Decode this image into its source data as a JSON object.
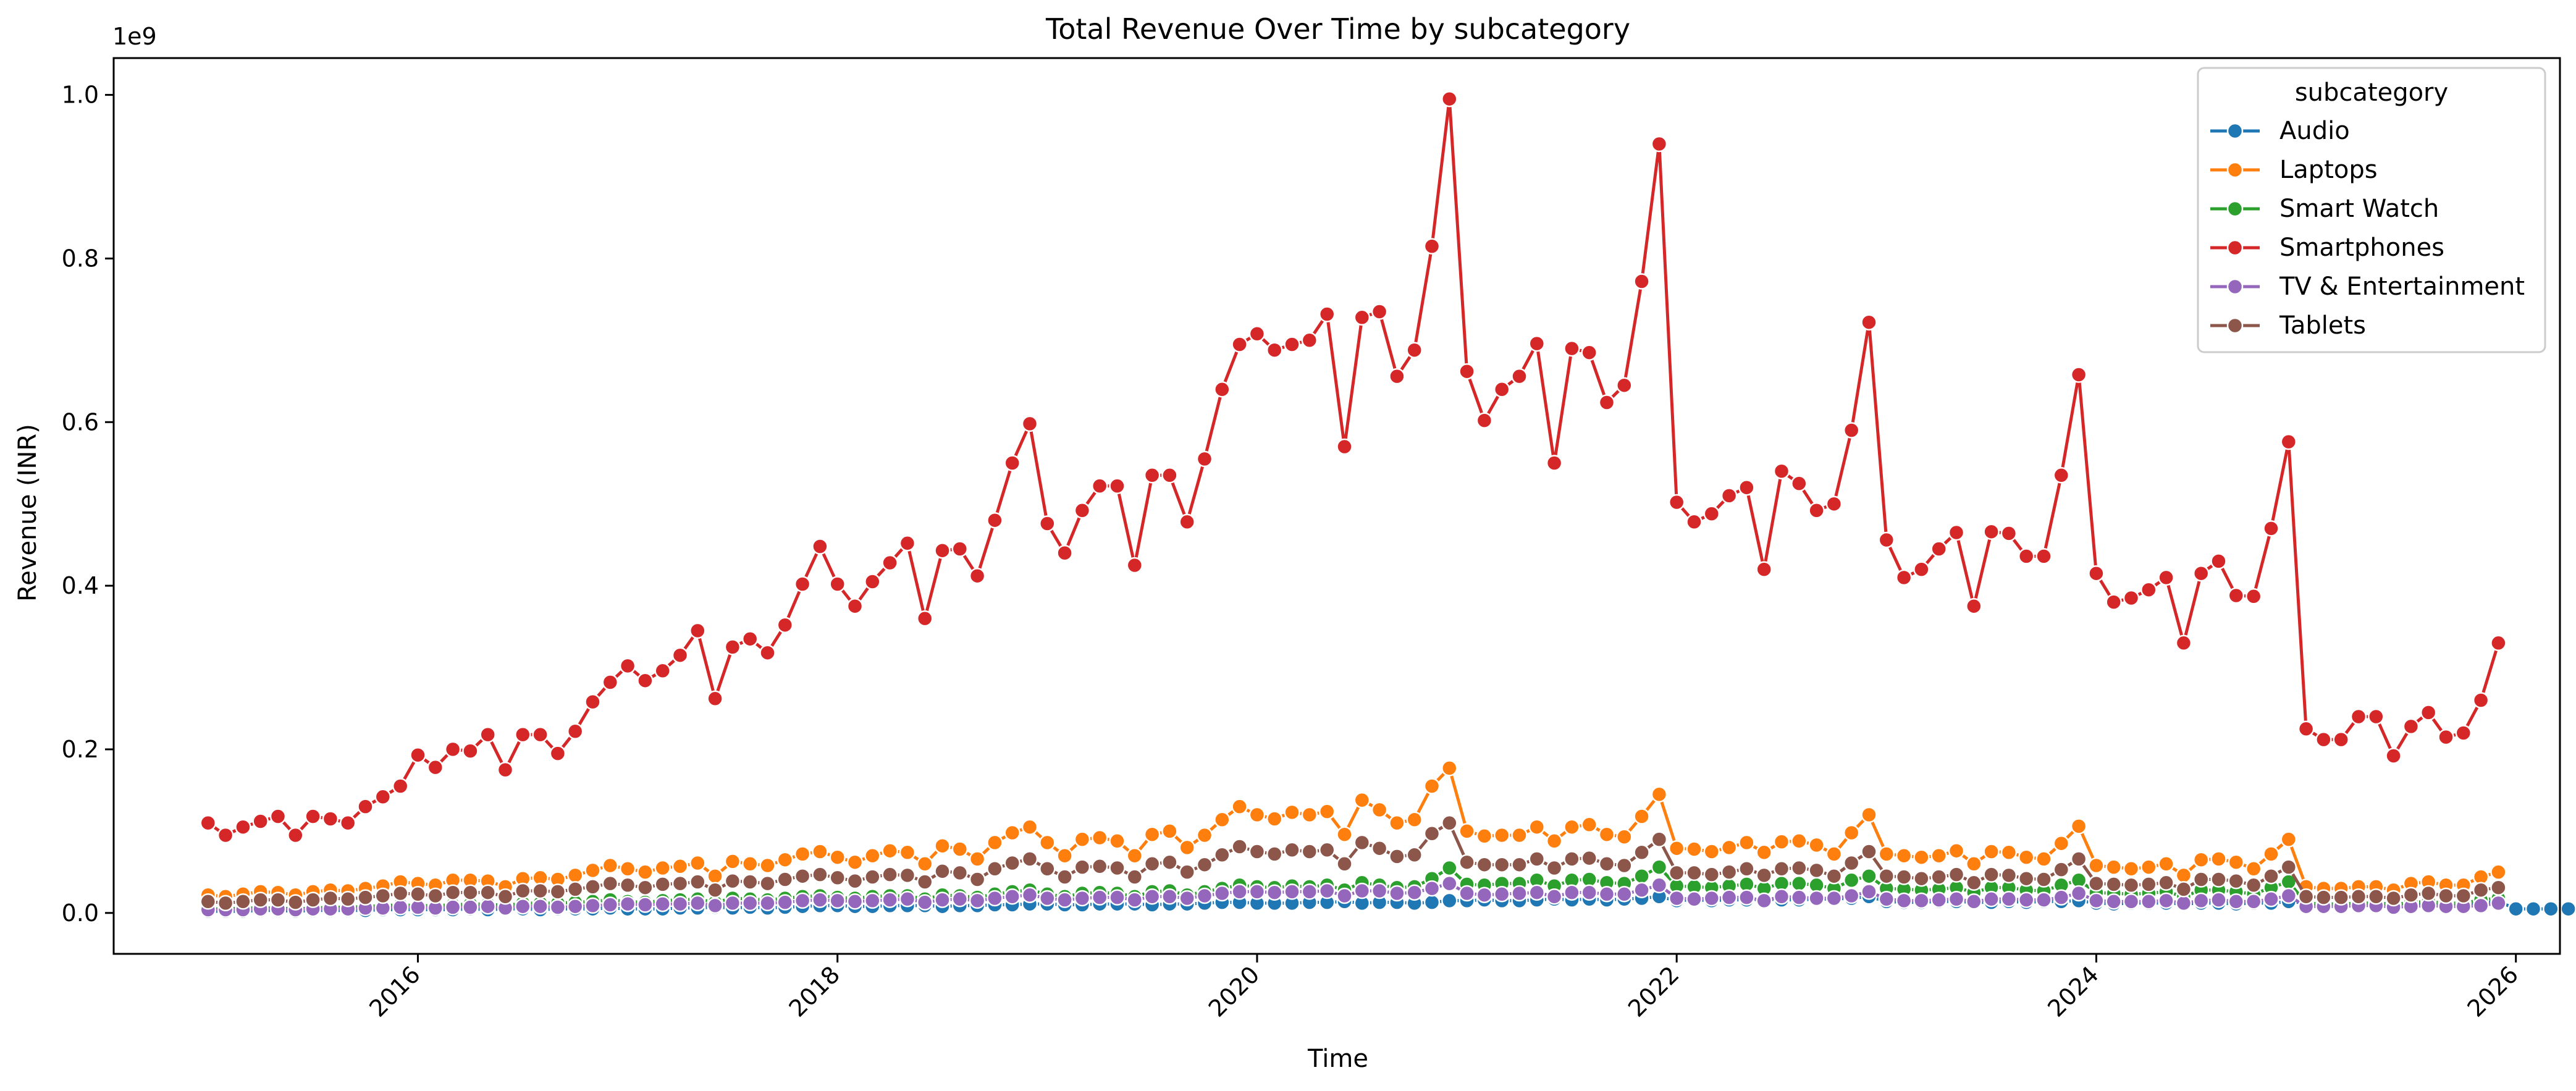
{
  "chart_data": {
    "type": "line",
    "title": "Total Revenue Over Time by subcategory",
    "xlabel": "Time",
    "ylabel": "Revenue (INR)",
    "y_scale_label": "1e9",
    "xlim": [
      2014.55,
      2026.21
    ],
    "ylim": [
      -0.05,
      1.045
    ],
    "x_ticks": [
      2016,
      2018,
      2020,
      2022,
      2024,
      2026
    ],
    "x_tick_labels": [
      "2016",
      "2018",
      "2020",
      "2022",
      "2024",
      "2026"
    ],
    "y_ticks": [
      0.0,
      0.2,
      0.4,
      0.6,
      0.8,
      1.0
    ],
    "y_tick_labels": [
      "0.0",
      "0.2",
      "0.4",
      "0.6",
      "0.8",
      "1.0"
    ],
    "grid": false,
    "legend": {
      "title": "subcategory",
      "placement": "top-right"
    },
    "start_year": 2015,
    "series": [
      {
        "name": "Audio",
        "color": "#1f77b4",
        "values": [
          0.002,
          0.002,
          0.002,
          0.003,
          0.003,
          0.002,
          0.003,
          0.003,
          0.003,
          0.003,
          0.004,
          0.004,
          0.004,
          0.004,
          0.004,
          0.005,
          0.004,
          0.005,
          0.005,
          0.004,
          0.005,
          0.005,
          0.005,
          0.006,
          0.005,
          0.005,
          0.005,
          0.006,
          0.006,
          0.007,
          0.006,
          0.007,
          0.006,
          0.007,
          0.008,
          0.009,
          0.009,
          0.008,
          0.008,
          0.009,
          0.009,
          0.009,
          0.008,
          0.009,
          0.009,
          0.01,
          0.01,
          0.011,
          0.011,
          0.01,
          0.01,
          0.011,
          0.011,
          0.011,
          0.01,
          0.011,
          0.011,
          0.012,
          0.013,
          0.013,
          0.012,
          0.012,
          0.012,
          0.013,
          0.013,
          0.014,
          0.012,
          0.013,
          0.013,
          0.012,
          0.013,
          0.015,
          0.015,
          0.016,
          0.015,
          0.015,
          0.016,
          0.017,
          0.016,
          0.017,
          0.016,
          0.017,
          0.018,
          0.02,
          0.015,
          0.016,
          0.015,
          0.016,
          0.016,
          0.017,
          0.016,
          0.016,
          0.017,
          0.017,
          0.018,
          0.02,
          0.014,
          0.013,
          0.013,
          0.014,
          0.014,
          0.013,
          0.013,
          0.014,
          0.013,
          0.014,
          0.014,
          0.015,
          0.012,
          0.011,
          0.012,
          0.012,
          0.012,
          0.011,
          0.012,
          0.012,
          0.011,
          0.012,
          0.012,
          0.014,
          0.012,
          0.011,
          0.011,
          0.012,
          0.012,
          0.011,
          0.012,
          0.012,
          0.011,
          0.012,
          0.012,
          0.014,
          0.005,
          0.005,
          0.005,
          0.005,
          0.006,
          0.005,
          0.006,
          0.006,
          0.005,
          0.006,
          0.006,
          0.007
        ]
      },
      {
        "name": "Laptops",
        "color": "#ff7f0e",
        "values": [
          0.022,
          0.02,
          0.023,
          0.026,
          0.025,
          0.022,
          0.026,
          0.028,
          0.027,
          0.03,
          0.033,
          0.038,
          0.036,
          0.034,
          0.04,
          0.04,
          0.039,
          0.032,
          0.042,
          0.043,
          0.041,
          0.046,
          0.052,
          0.058,
          0.054,
          0.05,
          0.055,
          0.057,
          0.061,
          0.045,
          0.063,
          0.06,
          0.058,
          0.065,
          0.072,
          0.075,
          0.068,
          0.062,
          0.07,
          0.076,
          0.074,
          0.06,
          0.082,
          0.078,
          0.066,
          0.086,
          0.098,
          0.105,
          0.086,
          0.07,
          0.09,
          0.092,
          0.088,
          0.07,
          0.096,
          0.1,
          0.08,
          0.095,
          0.114,
          0.13,
          0.12,
          0.115,
          0.123,
          0.12,
          0.124,
          0.096,
          0.138,
          0.126,
          0.11,
          0.114,
          0.155,
          0.177,
          0.1,
          0.094,
          0.095,
          0.095,
          0.105,
          0.088,
          0.105,
          0.108,
          0.096,
          0.093,
          0.118,
          0.145,
          0.079,
          0.078,
          0.075,
          0.08,
          0.086,
          0.074,
          0.087,
          0.088,
          0.083,
          0.072,
          0.098,
          0.12,
          0.072,
          0.07,
          0.068,
          0.07,
          0.076,
          0.06,
          0.075,
          0.074,
          0.068,
          0.066,
          0.085,
          0.106,
          0.058,
          0.056,
          0.054,
          0.056,
          0.06,
          0.046,
          0.065,
          0.066,
          0.062,
          0.054,
          0.072,
          0.09,
          0.032,
          0.03,
          0.03,
          0.032,
          0.032,
          0.028,
          0.036,
          0.038,
          0.034,
          0.034,
          0.044,
          0.05
        ]
      },
      {
        "name": "Smart Watch",
        "color": "#2ca02c",
        "values": [
          0.005,
          0.005,
          0.006,
          0.006,
          0.006,
          0.005,
          0.006,
          0.007,
          0.007,
          0.008,
          0.009,
          0.01,
          0.009,
          0.009,
          0.01,
          0.011,
          0.011,
          0.009,
          0.012,
          0.012,
          0.012,
          0.013,
          0.014,
          0.016,
          0.014,
          0.013,
          0.015,
          0.016,
          0.017,
          0.013,
          0.018,
          0.017,
          0.016,
          0.018,
          0.02,
          0.021,
          0.019,
          0.018,
          0.02,
          0.021,
          0.021,
          0.017,
          0.022,
          0.021,
          0.019,
          0.023,
          0.026,
          0.028,
          0.023,
          0.02,
          0.024,
          0.025,
          0.024,
          0.02,
          0.026,
          0.027,
          0.022,
          0.026,
          0.03,
          0.034,
          0.032,
          0.031,
          0.033,
          0.032,
          0.034,
          0.028,
          0.037,
          0.034,
          0.031,
          0.032,
          0.042,
          0.055,
          0.035,
          0.034,
          0.036,
          0.036,
          0.04,
          0.033,
          0.04,
          0.041,
          0.037,
          0.036,
          0.045,
          0.056,
          0.033,
          0.032,
          0.031,
          0.033,
          0.035,
          0.03,
          0.036,
          0.036,
          0.034,
          0.03,
          0.04,
          0.045,
          0.03,
          0.029,
          0.028,
          0.029,
          0.031,
          0.025,
          0.031,
          0.031,
          0.028,
          0.027,
          0.034,
          0.04,
          0.025,
          0.024,
          0.023,
          0.024,
          0.026,
          0.02,
          0.028,
          0.028,
          0.026,
          0.023,
          0.031,
          0.038,
          0.012,
          0.011,
          0.011,
          0.012,
          0.012,
          0.01,
          0.013,
          0.014,
          0.012,
          0.012,
          0.016,
          0.018
        ]
      },
      {
        "name": "Smartphones",
        "color": "#d62728",
        "values": [
          0.11,
          0.095,
          0.105,
          0.112,
          0.118,
          0.095,
          0.118,
          0.115,
          0.11,
          0.13,
          0.142,
          0.155,
          0.193,
          0.178,
          0.2,
          0.198,
          0.218,
          0.175,
          0.218,
          0.218,
          0.195,
          0.222,
          0.258,
          0.282,
          0.302,
          0.284,
          0.296,
          0.315,
          0.345,
          0.262,
          0.325,
          0.335,
          0.318,
          0.352,
          0.402,
          0.448,
          0.402,
          0.375,
          0.405,
          0.428,
          0.452,
          0.36,
          0.443,
          0.445,
          0.412,
          0.48,
          0.55,
          0.598,
          0.476,
          0.44,
          0.492,
          0.522,
          0.522,
          0.425,
          0.535,
          0.535,
          0.478,
          0.555,
          0.64,
          0.695,
          0.708,
          0.688,
          0.695,
          0.7,
          0.732,
          0.57,
          0.728,
          0.735,
          0.656,
          0.688,
          0.815,
          0.995,
          0.662,
          0.602,
          0.64,
          0.656,
          0.696,
          0.55,
          0.69,
          0.685,
          0.624,
          0.645,
          0.772,
          0.94,
          0.502,
          0.478,
          0.488,
          0.51,
          0.52,
          0.42,
          0.54,
          0.525,
          0.492,
          0.5,
          0.59,
          0.722,
          0.456,
          0.41,
          0.42,
          0.445,
          0.465,
          0.375,
          0.466,
          0.464,
          0.436,
          0.436,
          0.535,
          0.658,
          0.415,
          0.38,
          0.385,
          0.395,
          0.41,
          0.33,
          0.415,
          0.43,
          0.388,
          0.387,
          0.47,
          0.576,
          0.225,
          0.212,
          0.212,
          0.24,
          0.24,
          0.192,
          0.228,
          0.245,
          0.215,
          0.22,
          0.26,
          0.33
        ]
      },
      {
        "name": "TV & Entertainment",
        "color": "#9467bd",
        "values": [
          0.004,
          0.004,
          0.004,
          0.005,
          0.005,
          0.004,
          0.005,
          0.005,
          0.005,
          0.006,
          0.006,
          0.007,
          0.007,
          0.006,
          0.007,
          0.007,
          0.008,
          0.006,
          0.008,
          0.008,
          0.007,
          0.008,
          0.009,
          0.01,
          0.011,
          0.01,
          0.011,
          0.011,
          0.012,
          0.009,
          0.012,
          0.012,
          0.012,
          0.013,
          0.015,
          0.016,
          0.015,
          0.014,
          0.015,
          0.016,
          0.017,
          0.013,
          0.016,
          0.017,
          0.015,
          0.018,
          0.02,
          0.022,
          0.018,
          0.016,
          0.018,
          0.019,
          0.019,
          0.016,
          0.02,
          0.02,
          0.018,
          0.021,
          0.024,
          0.026,
          0.026,
          0.025,
          0.026,
          0.026,
          0.027,
          0.021,
          0.027,
          0.027,
          0.024,
          0.025,
          0.03,
          0.036,
          0.024,
          0.022,
          0.023,
          0.024,
          0.025,
          0.02,
          0.025,
          0.025,
          0.023,
          0.023,
          0.028,
          0.034,
          0.018,
          0.017,
          0.018,
          0.019,
          0.019,
          0.015,
          0.02,
          0.019,
          0.018,
          0.018,
          0.021,
          0.026,
          0.017,
          0.015,
          0.015,
          0.016,
          0.017,
          0.014,
          0.017,
          0.017,
          0.016,
          0.016,
          0.019,
          0.024,
          0.015,
          0.014,
          0.014,
          0.014,
          0.015,
          0.012,
          0.015,
          0.016,
          0.014,
          0.014,
          0.017,
          0.021,
          0.008,
          0.008,
          0.008,
          0.009,
          0.009,
          0.007,
          0.008,
          0.009,
          0.008,
          0.008,
          0.009,
          0.012
        ]
      },
      {
        "name": "Tablets",
        "color": "#8c564b",
        "values": [
          0.014,
          0.012,
          0.014,
          0.016,
          0.016,
          0.013,
          0.016,
          0.018,
          0.017,
          0.019,
          0.021,
          0.024,
          0.023,
          0.021,
          0.025,
          0.025,
          0.025,
          0.02,
          0.027,
          0.027,
          0.026,
          0.029,
          0.032,
          0.036,
          0.034,
          0.031,
          0.035,
          0.036,
          0.038,
          0.028,
          0.039,
          0.038,
          0.036,
          0.041,
          0.045,
          0.047,
          0.043,
          0.039,
          0.044,
          0.047,
          0.046,
          0.038,
          0.051,
          0.049,
          0.041,
          0.054,
          0.061,
          0.066,
          0.054,
          0.044,
          0.056,
          0.057,
          0.055,
          0.044,
          0.06,
          0.062,
          0.05,
          0.059,
          0.071,
          0.081,
          0.075,
          0.072,
          0.077,
          0.075,
          0.077,
          0.06,
          0.086,
          0.079,
          0.069,
          0.071,
          0.097,
          0.11,
          0.062,
          0.059,
          0.059,
          0.059,
          0.066,
          0.055,
          0.066,
          0.067,
          0.06,
          0.058,
          0.074,
          0.09,
          0.049,
          0.049,
          0.047,
          0.05,
          0.054,
          0.046,
          0.054,
          0.055,
          0.052,
          0.045,
          0.061,
          0.075,
          0.045,
          0.044,
          0.042,
          0.044,
          0.047,
          0.037,
          0.047,
          0.046,
          0.042,
          0.041,
          0.053,
          0.066,
          0.036,
          0.035,
          0.034,
          0.035,
          0.037,
          0.029,
          0.041,
          0.041,
          0.039,
          0.034,
          0.045,
          0.056,
          0.02,
          0.019,
          0.019,
          0.02,
          0.02,
          0.018,
          0.022,
          0.024,
          0.021,
          0.021,
          0.028,
          0.031
        ]
      }
    ]
  }
}
